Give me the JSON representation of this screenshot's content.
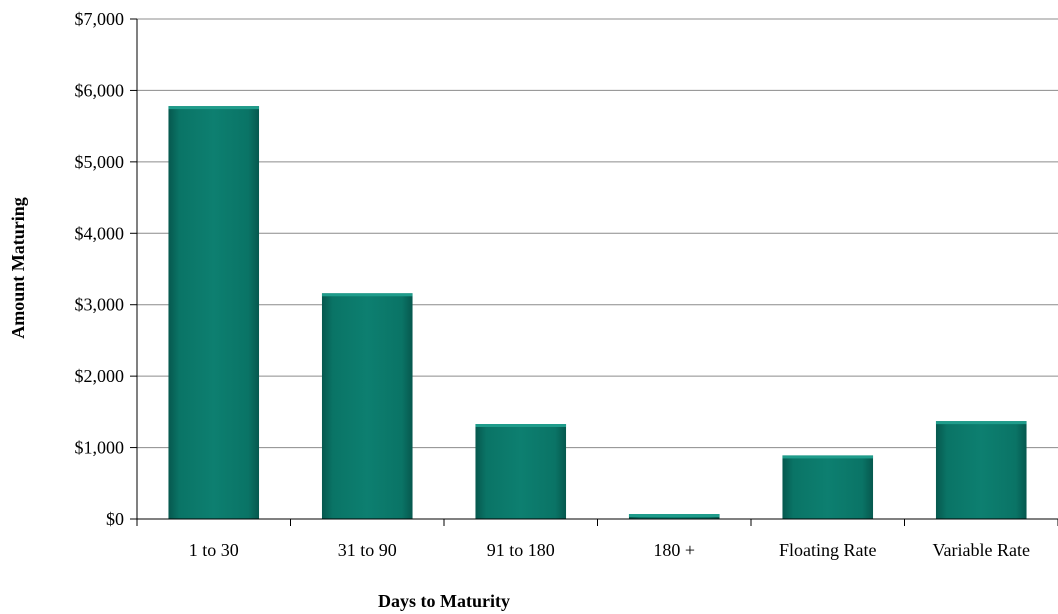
{
  "chart_data": {
    "type": "bar",
    "title": "",
    "xlabel": "Days to Maturity",
    "ylabel": "Amount Maturing",
    "categories": [
      "1 to 30",
      "31 to 90",
      "91 to 180",
      "180 +",
      "Floating Rate",
      "Variable Rate"
    ],
    "values": [
      5780,
      3160,
      1330,
      70,
      890,
      1370
    ],
    "ylim": [
      0,
      7000
    ],
    "y_ticks": [
      "$0",
      "$1,000",
      "$2,000",
      "$3,000",
      "$4,000",
      "$5,000",
      "$6,000",
      "$7,000"
    ],
    "grid": true,
    "legend": "none",
    "colors": {
      "bar": "#0b7a6c",
      "bar_dark": "#075a50",
      "bar_light": "#1f9c8b",
      "grid": "#8c8c8c",
      "axis": "#000000"
    }
  }
}
